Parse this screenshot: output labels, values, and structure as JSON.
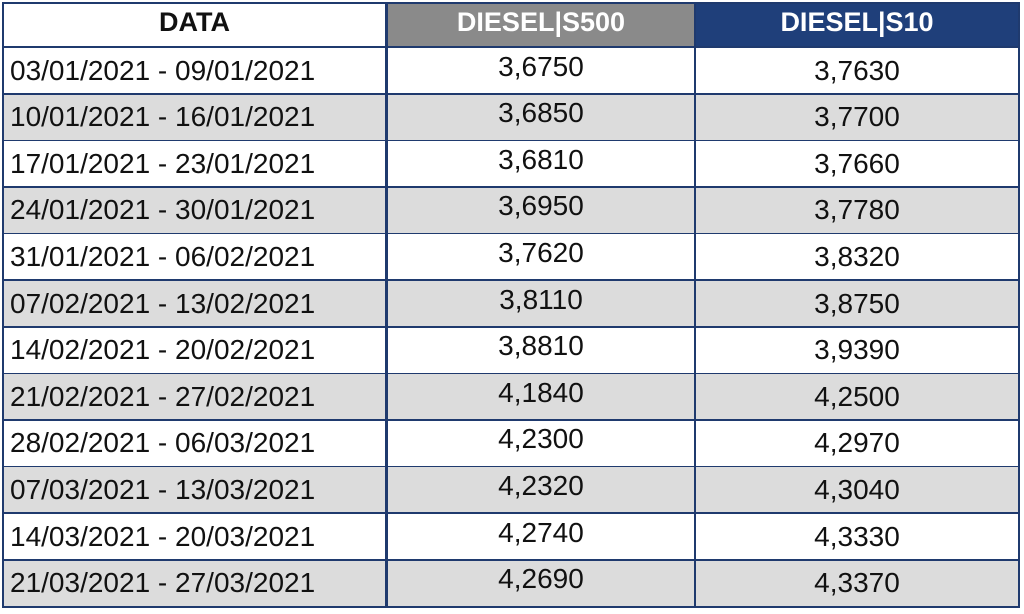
{
  "header": [
    "DATA",
    "DIESEL|S500",
    "DIESEL|S10"
  ],
  "table": {
    "rows": [
      [
        "03/01/2021 - 09/01/2021",
        "3,6750",
        "3,7630"
      ],
      [
        "10/01/2021 - 16/01/2021",
        "3,6850",
        "3,7700"
      ],
      [
        "17/01/2021 - 23/01/2021",
        "3,6810",
        "3,7660"
      ],
      [
        "24/01/2021 - 30/01/2021",
        "3,6950",
        "3,7780"
      ],
      [
        "31/01/2021 - 06/02/2021",
        "3,7620",
        "3,8320"
      ],
      [
        "07/02/2021 - 13/02/2021",
        "3,8110",
        "3,8750"
      ],
      [
        "14/02/2021 - 20/02/2021",
        "3,8810",
        "3,9390"
      ],
      [
        "21/02/2021 - 27/02/2021",
        "4,1840",
        "4,2500"
      ],
      [
        "28/02/2021 - 06/03/2021",
        "4,2300",
        "4,2970"
      ],
      [
        "07/03/2021 - 13/03/2021",
        "4,2320",
        "4,3040"
      ],
      [
        "14/03/2021 - 20/03/2021",
        "4,2740",
        "4,3330"
      ],
      [
        "21/03/2021 - 27/03/2021",
        "4,2690",
        "4,3370"
      ]
    ]
  }
}
